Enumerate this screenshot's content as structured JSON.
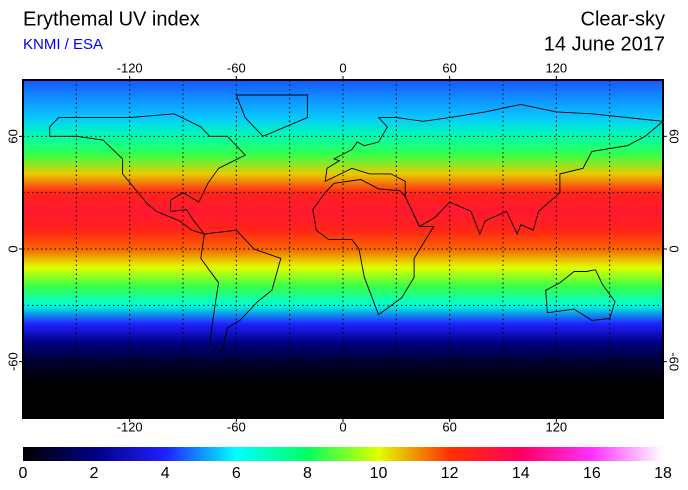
{
  "header": {
    "title": "Erythemal UV index",
    "source": "KNMI / ESA",
    "condition": "Clear-sky",
    "date": "14 June 2017"
  },
  "map": {
    "lonlim": [
      -180,
      180
    ],
    "latlim": [
      -90,
      90
    ],
    "lonticks": [
      -120,
      -60,
      0,
      60,
      120
    ],
    "latticks": [
      -60,
      0,
      60
    ],
    "lon_grid": [
      -150,
      -120,
      -90,
      -60,
      -30,
      0,
      30,
      60,
      90,
      120,
      150
    ],
    "lat_grid": [
      -60,
      -30,
      0,
      30,
      60
    ],
    "uv_profile": {
      "lat": [
        90,
        80,
        70,
        60,
        50,
        40,
        30,
        20,
        10,
        0,
        -10,
        -20,
        -30,
        -40,
        -50,
        -60,
        -70,
        -80,
        -90
      ],
      "values": [
        4.5,
        5,
        5.5,
        7,
        8.5,
        10.5,
        12.5,
        13,
        12.5,
        11.5,
        10,
        8.5,
        6.5,
        4,
        2,
        0.8,
        0.1,
        0,
        0
      ]
    }
  },
  "colorbar": {
    "lim": [
      0,
      18
    ],
    "ticks": [
      0,
      2,
      4,
      6,
      8,
      10,
      12,
      14,
      16,
      18
    ],
    "colors": [
      "#000000",
      "#000080",
      "#2020ff",
      "#00ffff",
      "#00ff60",
      "#e0ff00",
      "#ff3000",
      "#ff0060",
      "#ff30ff",
      "#ffffff"
    ]
  }
}
